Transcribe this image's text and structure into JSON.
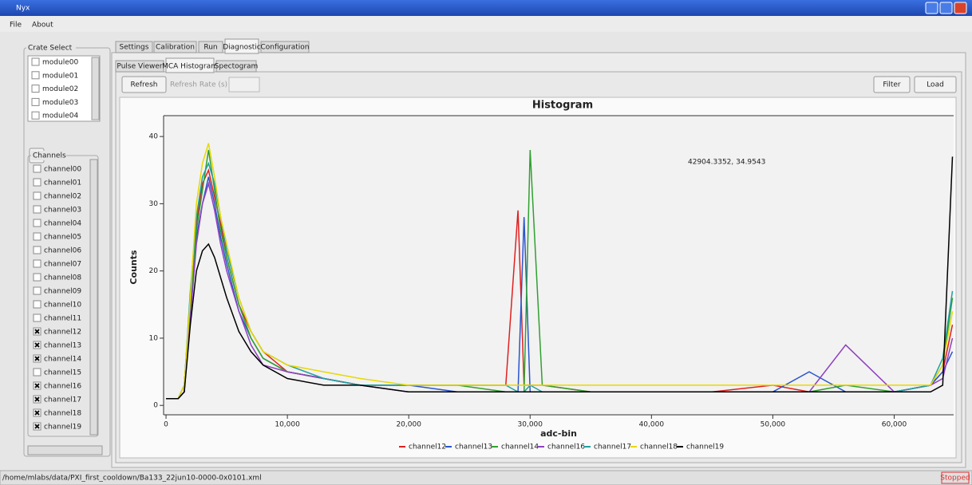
{
  "window": {
    "title": "Nyx"
  },
  "menu": [
    "File",
    "About"
  ],
  "crate_select": {
    "title": "Crate Select",
    "modules": [
      {
        "label": "module00",
        "checked": false
      },
      {
        "label": "module01",
        "checked": false
      },
      {
        "label": "module02",
        "checked": false
      },
      {
        "label": "module03",
        "checked": false
      },
      {
        "label": "module04",
        "checked": false
      }
    ],
    "channels_title": "Channels",
    "channels": [
      {
        "label": "channel00",
        "checked": false
      },
      {
        "label": "channel01",
        "checked": false
      },
      {
        "label": "channel02",
        "checked": false
      },
      {
        "label": "channel03",
        "checked": false
      },
      {
        "label": "channel04",
        "checked": false
      },
      {
        "label": "channel05",
        "checked": false
      },
      {
        "label": "channel06",
        "checked": false
      },
      {
        "label": "channel07",
        "checked": false
      },
      {
        "label": "channel08",
        "checked": false
      },
      {
        "label": "channel09",
        "checked": false
      },
      {
        "label": "channel10",
        "checked": false
      },
      {
        "label": "channel11",
        "checked": false
      },
      {
        "label": "channel12",
        "checked": true
      },
      {
        "label": "channel13",
        "checked": true
      },
      {
        "label": "channel14",
        "checked": true
      },
      {
        "label": "channel15",
        "checked": false
      },
      {
        "label": "channel16",
        "checked": true
      },
      {
        "label": "channel17",
        "checked": true
      },
      {
        "label": "channel18",
        "checked": true
      },
      {
        "label": "channel19",
        "checked": true
      }
    ]
  },
  "tabs": {
    "items": [
      "Settings",
      "Calibration",
      "Run",
      "Diagnostic",
      "Configuration"
    ],
    "selected": 3
  },
  "subtabs": {
    "items": [
      "Pulse Viewer",
      "MCA Histogram",
      "Spectogram"
    ],
    "selected": 1
  },
  "toolbar": {
    "refresh": "Refresh",
    "refresh_rate": "Refresh Rate (s)",
    "filter": "Filter",
    "load": "Load"
  },
  "chart_data": {
    "type": "line",
    "title": "Histogram",
    "x_label": "adc-bin",
    "y_label": "Counts",
    "annotation": "42904.3352, 34.9543",
    "x": [
      0,
      1000,
      1500,
      2000,
      2500,
      3000,
      3500,
      4000,
      4500,
      5000,
      6000,
      7000,
      8000,
      10000,
      13000,
      16000,
      20000,
      24000,
      28000,
      29000,
      29500,
      30000,
      31000,
      35000,
      40000,
      45000,
      50000,
      53000,
      56000,
      60000,
      63000,
      64000,
      64800
    ],
    "xlim": [
      -200,
      64900
    ],
    "ylim": [
      -1.4,
      43.1
    ],
    "xticks": [
      0,
      {
        "value": 10000,
        "label": "10,000"
      },
      {
        "value": 20000,
        "label": "20,000"
      },
      {
        "value": 30000,
        "label": "30,000"
      },
      {
        "value": 40000,
        "label": "40,000"
      },
      {
        "value": 50000,
        "label": "50,000"
      },
      {
        "value": 60000,
        "label": "60,000"
      }
    ],
    "yticks": [
      0,
      10,
      20,
      30,
      40
    ],
    "series": [
      {
        "name": "channel12",
        "color": "#e02020",
        "values": [
          1,
          1,
          3,
          16,
          27,
          33,
          35,
          31,
          27,
          22,
          15,
          11,
          8,
          5,
          4,
          3,
          3,
          3,
          3,
          29,
          3,
          3,
          3,
          2,
          2,
          2,
          3,
          2,
          2,
          2,
          3,
          5,
          12
        ]
      },
      {
        "name": "channel13",
        "color": "#2a55cc",
        "values": [
          1,
          1,
          2,
          14,
          25,
          30,
          34,
          30,
          25,
          21,
          14,
          10,
          7,
          5,
          4,
          3,
          3,
          2,
          2,
          2,
          28,
          2,
          2,
          2,
          2,
          2,
          2,
          5,
          2,
          2,
          3,
          5,
          8
        ]
      },
      {
        "name": "channel14",
        "color": "#30a030",
        "values": [
          1,
          1,
          3,
          15,
          26,
          32,
          38,
          32,
          26,
          22,
          15,
          10,
          7,
          5,
          4,
          3,
          3,
          3,
          2,
          2,
          2,
          38,
          3,
          2,
          2,
          2,
          2,
          2,
          3,
          2,
          3,
          6,
          16
        ]
      },
      {
        "name": "channel16",
        "color": "#9040c0",
        "values": [
          1,
          1,
          2,
          13,
          24,
          30,
          33,
          29,
          24,
          20,
          14,
          9,
          6,
          5,
          4,
          3,
          2,
          2,
          2,
          2,
          2,
          2,
          2,
          2,
          2,
          2,
          2,
          2,
          9,
          2,
          3,
          4,
          10
        ]
      },
      {
        "name": "channel17",
        "color": "#20a0a0",
        "values": [
          1,
          1,
          3,
          17,
          28,
          34,
          36,
          33,
          28,
          23,
          16,
          11,
          8,
          6,
          4,
          3,
          3,
          3,
          3,
          2,
          2,
          3,
          2,
          2,
          2,
          2,
          2,
          2,
          2,
          2,
          3,
          7,
          17
        ]
      },
      {
        "name": "channel18",
        "color": "#e8d800",
        "values": [
          1,
          1,
          3,
          16,
          30,
          36,
          39,
          34,
          28,
          24,
          16,
          11,
          8,
          6,
          5,
          4,
          3,
          3,
          3,
          3,
          3,
          3,
          3,
          3,
          3,
          3,
          3,
          3,
          3,
          3,
          3,
          6,
          14
        ]
      },
      {
        "name": "channel19",
        "color": "#000000",
        "values": [
          1,
          1,
          2,
          12,
          20,
          23,
          24,
          22,
          19,
          16,
          11,
          8,
          6,
          4,
          3,
          3,
          2,
          2,
          2,
          2,
          2,
          2,
          2,
          2,
          2,
          2,
          2,
          2,
          2,
          2,
          2,
          3,
          37
        ]
      }
    ]
  },
  "status_bar": {
    "path": "/home/mlabs/data/PXI_first_cooldown/Ba133_22jun10-0000-0x0101.xml",
    "state": "Stopped"
  }
}
